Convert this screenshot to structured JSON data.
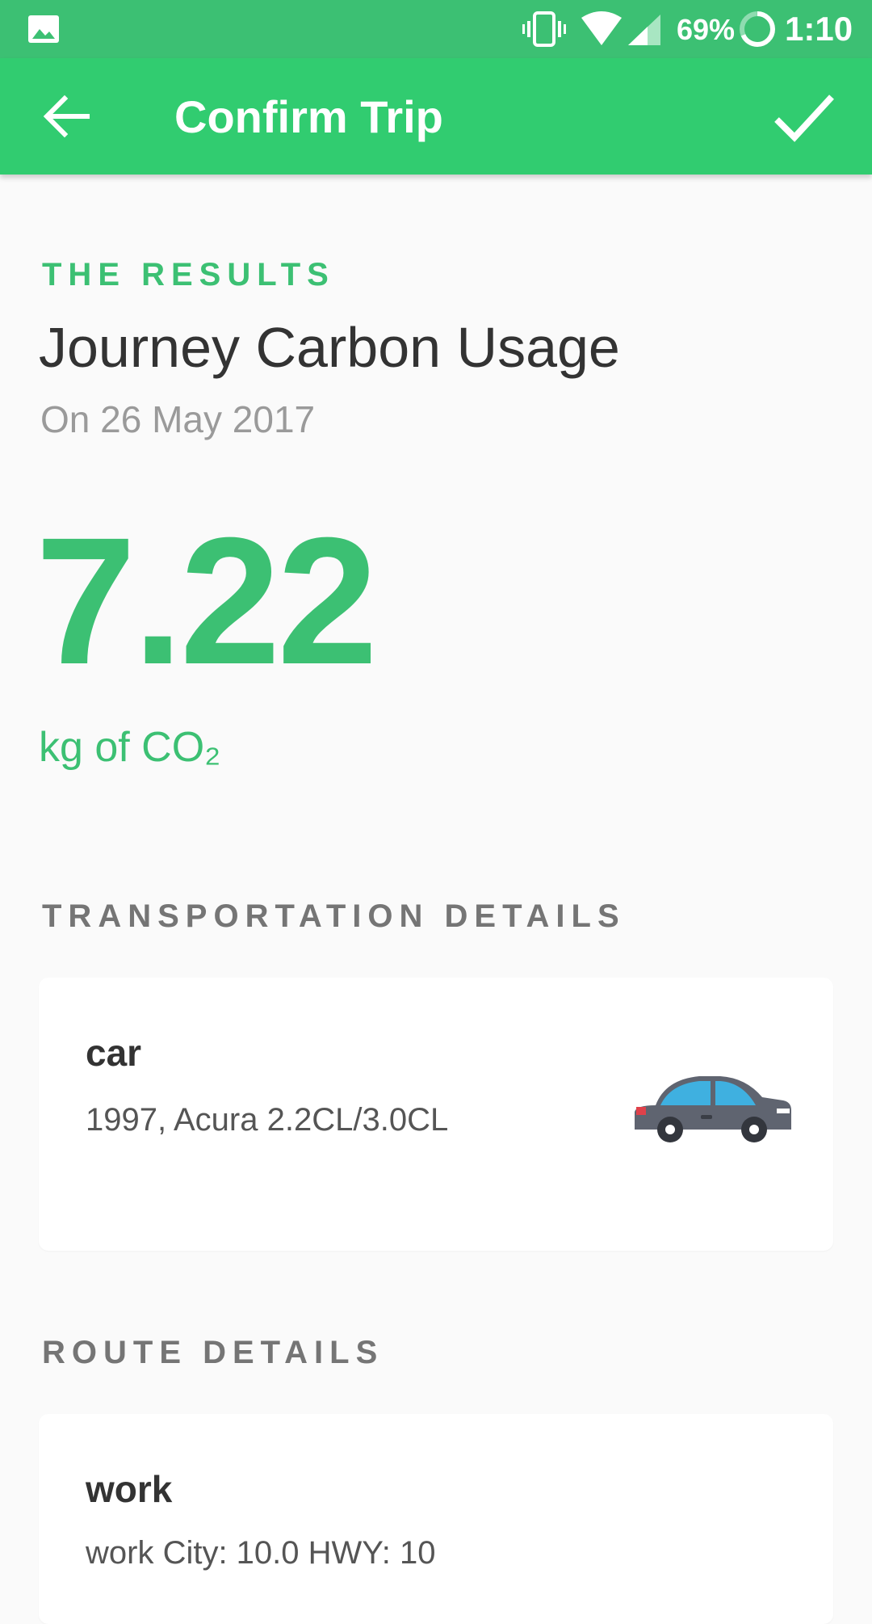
{
  "status_bar": {
    "battery_percent": "69%",
    "time": "1:10"
  },
  "app_bar": {
    "title": "Confirm Trip"
  },
  "results": {
    "eyebrow": "THE RESULTS",
    "heading": "Journey Carbon Usage",
    "date": "On 26 May 2017",
    "value": "7.22",
    "unit": "kg of CO₂"
  },
  "transportation": {
    "section_title": "TRANSPORTATION DETAILS",
    "mode": "car",
    "vehicle": "1997, Acura 2.2CL/3.0CL",
    "icon": "car-icon"
  },
  "route": {
    "section_title": "ROUTE DETAILS",
    "name": "work",
    "detail": "work City: 10.0 HWY: 10"
  },
  "colors": {
    "accent": "#3cc073",
    "app_bar": "#31cc70",
    "status_bar": "#3cc073",
    "background": "#fafafa"
  }
}
